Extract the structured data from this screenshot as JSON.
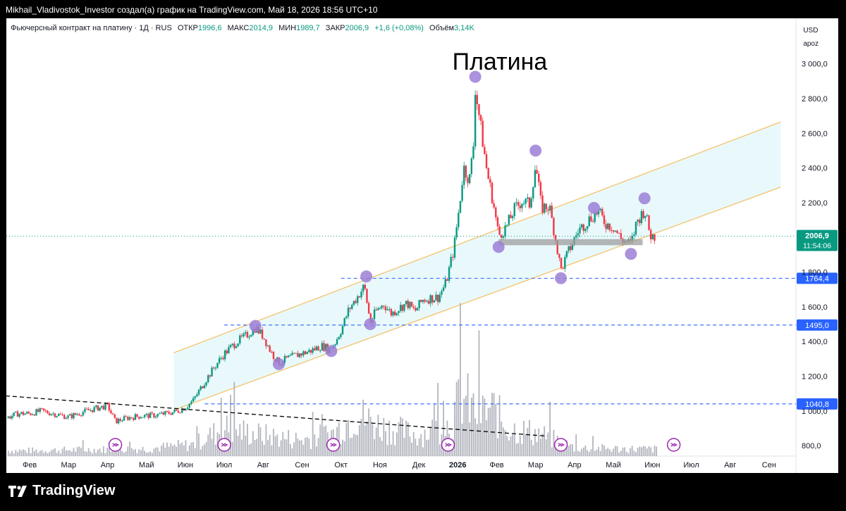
{
  "header": {
    "attribution": "Mikhail_Vladivostok_Investor создал(а) график на TradingView.com, Май 18, 2026 18:56 UTC+10"
  },
  "legend": {
    "symbol": "Фьючерсный контракт на платину · 1Д · RUS",
    "open_label": "ОТКР",
    "open": "1996,6",
    "high_label": "МАКС",
    "high": "2014,9",
    "low_label": "МИН",
    "low": "1989,7",
    "close_label": "ЗАКР",
    "close": "2006,9",
    "change": "+1,6 (+0,08%)",
    "volume_label": "Объём",
    "volume": "3,14K"
  },
  "scale": {
    "currency": "USD",
    "mode": "apoz"
  },
  "footer": {
    "brand": "TradingView"
  },
  "colors": {
    "up": "#089981",
    "down": "#f23645",
    "channel": "#f5c26b",
    "channel_fill": "#e0f7fa",
    "marker": "#9c7fd6",
    "hline": "#2962ff",
    "trend": "#000000",
    "support": "#9e9e9e",
    "volume": "#b2b5be"
  },
  "chart_data": {
    "type": "candlestick",
    "title": "Платина",
    "ylim": [
      740,
      3100
    ],
    "y_ticks": [
      "3 000,0",
      "2 800,0",
      "2 600,0",
      "2 400,0",
      "2 200,0",
      "1 800,0",
      "1 600,0",
      "1 400,0",
      "1 200,0",
      "1 000,0",
      "800,0"
    ],
    "y_tick_values": [
      3000,
      2800,
      2600,
      2400,
      2200,
      1800,
      1600,
      1400,
      1200,
      1000,
      800
    ],
    "x_ticks": [
      "Фев",
      "Мар",
      "Апр",
      "Май",
      "Июн",
      "Июл",
      "Авг",
      "Сен",
      "Окт",
      "Ноя",
      "Дек",
      "2026",
      "Фев",
      "Мар",
      "Апр",
      "Май",
      "Июн",
      "Июл",
      "Авг",
      "Сен"
    ],
    "x_tick_index": [
      0,
      1,
      2,
      3,
      4,
      5,
      6,
      7,
      8,
      9,
      10,
      11,
      12,
      13,
      14,
      15,
      16,
      17,
      18,
      19
    ],
    "x_range_months": [
      -0.6,
      19.6
    ],
    "last_price": {
      "label": "2006,9",
      "countdown": "11:54:06",
      "value": 2006.9
    },
    "horizontal_levels": [
      {
        "label": "1764,4",
        "value": 1764.4,
        "from_month": 8.0
      },
      {
        "label": "1495,0",
        "value": 1495.0,
        "from_month": 5.0
      },
      {
        "label": "1040,8",
        "value": 1040.8,
        "from_month": 4.5
      }
    ],
    "channel": {
      "upper": [
        [
          3.7,
          1335
        ],
        [
          19.3,
          2665
        ]
      ],
      "lower": [
        [
          3.7,
          1005
        ],
        [
          19.3,
          2290
        ]
      ]
    },
    "trendline": [
      [
        -0.8,
        1090
      ],
      [
        13.3,
        855
      ]
    ],
    "support_zone": {
      "from_month": 12.05,
      "to_month": 15.75,
      "low": 1955,
      "high": 1990
    },
    "markers": [
      [
        5.8,
        1490
      ],
      [
        6.4,
        1270
      ],
      [
        7.75,
        1345
      ],
      [
        8.65,
        1775
      ],
      [
        8.75,
        1500
      ],
      [
        11.45,
        2925
      ],
      [
        12.05,
        1945
      ],
      [
        13.0,
        2500
      ],
      [
        13.65,
        1765
      ],
      [
        14.5,
        2170
      ],
      [
        15.45,
        1905
      ],
      [
        15.8,
        2225
      ]
    ],
    "event_icons": [
      2.2,
      5.0,
      7.8,
      10.75,
      13.65,
      16.55
    ],
    "price_path": [
      [
        -0.6,
        960
      ],
      [
        -0.3,
        985
      ],
      [
        0.0,
        985
      ],
      [
        0.3,
        1000
      ],
      [
        0.6,
        985
      ],
      [
        1.0,
        965
      ],
      [
        1.3,
        990
      ],
      [
        1.7,
        1015
      ],
      [
        2.0,
        1030
      ],
      [
        2.2,
        940
      ],
      [
        2.5,
        960
      ],
      [
        2.8,
        970
      ],
      [
        3.2,
        975
      ],
      [
        3.5,
        985
      ],
      [
        3.8,
        1000
      ],
      [
        4.0,
        1020
      ],
      [
        4.2,
        1060
      ],
      [
        4.5,
        1170
      ],
      [
        4.8,
        1270
      ],
      [
        5.0,
        1330
      ],
      [
        5.3,
        1395
      ],
      [
        5.6,
        1440
      ],
      [
        5.8,
        1480
      ],
      [
        6.0,
        1430
      ],
      [
        6.2,
        1340
      ],
      [
        6.4,
        1275
      ],
      [
        6.6,
        1300
      ],
      [
        6.9,
        1325
      ],
      [
        7.2,
        1345
      ],
      [
        7.5,
        1375
      ],
      [
        7.7,
        1355
      ],
      [
        7.85,
        1395
      ],
      [
        8.0,
        1465
      ],
      [
        8.2,
        1585
      ],
      [
        8.4,
        1650
      ],
      [
        8.6,
        1720
      ],
      [
        8.75,
        1510
      ],
      [
        8.9,
        1575
      ],
      [
        9.1,
        1615
      ],
      [
        9.3,
        1560
      ],
      [
        9.5,
        1595
      ],
      [
        9.7,
        1620
      ],
      [
        9.9,
        1575
      ],
      [
        10.1,
        1640
      ],
      [
        10.3,
        1650
      ],
      [
        10.5,
        1655
      ],
      [
        10.7,
        1740
      ],
      [
        10.9,
        1935
      ],
      [
        11.05,
        2195
      ],
      [
        11.15,
        2405
      ],
      [
        11.3,
        2330
      ],
      [
        11.4,
        2520
      ],
      [
        11.45,
        2860
      ],
      [
        11.6,
        2620
      ],
      [
        11.75,
        2380
      ],
      [
        11.9,
        2215
      ],
      [
        12.05,
        2010
      ],
      [
        12.25,
        2060
      ],
      [
        12.45,
        2160
      ],
      [
        12.65,
        2210
      ],
      [
        12.85,
        2190
      ],
      [
        13.0,
        2420
      ],
      [
        13.15,
        2170
      ],
      [
        13.35,
        2180
      ],
      [
        13.5,
        2010
      ],
      [
        13.65,
        1810
      ],
      [
        13.85,
        1920
      ],
      [
        14.1,
        2040
      ],
      [
        14.4,
        2110
      ],
      [
        14.6,
        2150
      ],
      [
        14.8,
        2080
      ],
      [
        15.0,
        2060
      ],
      [
        15.2,
        1990
      ],
      [
        15.45,
        1960
      ],
      [
        15.6,
        2090
      ],
      [
        15.8,
        2160
      ],
      [
        15.95,
        2010
      ],
      [
        16.05,
        2006.9
      ]
    ],
    "volume_ylim": [
      0,
      2200
    ],
    "volume_profile": [
      [
        0.0,
        120
      ],
      [
        1.5,
        140
      ],
      [
        3.0,
        160
      ],
      [
        4.2,
        250
      ],
      [
        5.0,
        600
      ],
      [
        6.0,
        450
      ],
      [
        7.0,
        350
      ],
      [
        7.8,
        500
      ],
      [
        8.4,
        900
      ],
      [
        9.0,
        650
      ],
      [
        10.0,
        450
      ],
      [
        10.8,
        700
      ],
      [
        11.1,
        1300
      ],
      [
        11.5,
        900
      ],
      [
        11.9,
        1000
      ],
      [
        12.3,
        600
      ],
      [
        13.0,
        500
      ],
      [
        13.5,
        350
      ],
      [
        14.0,
        180
      ],
      [
        15.0,
        160
      ],
      [
        16.1,
        150
      ]
    ]
  }
}
